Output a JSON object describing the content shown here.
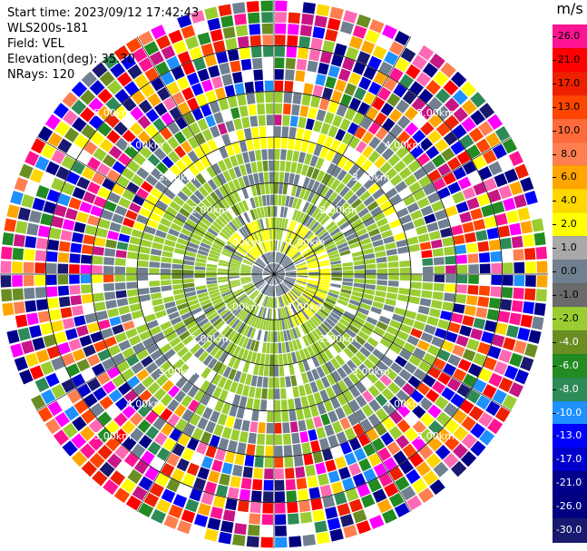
{
  "header": {
    "start_time": "Start time: 2023/09/12 17:42:43",
    "instrument": "WLS200s-181",
    "field": "Field: VEL",
    "elevation": "Elevation(deg): 35.30",
    "nrays": "NRays: 120"
  },
  "colorbar": {
    "unit": "m/s",
    "labels": [
      "26.0",
      "21.0",
      "17.0",
      "13.0",
      "10.0",
      "8.0",
      "6.0",
      "4.0",
      "2.0",
      "1.0",
      "0.0",
      "-1.0",
      "-2.0",
      "-4.0",
      "-6.0",
      "-8.0",
      "-10.0",
      "-13.0",
      "-17.0",
      "-21.0",
      "-26.0",
      "-30.0"
    ],
    "colors": [
      "#ff1493",
      "#ff0000",
      "#ee2000",
      "#ff4500",
      "#ff6a3a",
      "#ff7f50",
      "#ffa500",
      "#ffd700",
      "#ffff00",
      "#a9a9a9",
      "#708090",
      "#6b6b6b",
      "#9acd32",
      "#6b8e23",
      "#228b22",
      "#2e8b57",
      "#1e90ff",
      "#0000ff",
      "#0000cd",
      "#00008b",
      "#000080",
      "#191970"
    ]
  },
  "range_rings": {
    "labels": [
      "1.00km",
      "2.00km",
      "3.00km",
      "4.00km",
      "5.00km"
    ]
  },
  "plot": {
    "nrays": 120,
    "ngates": 24,
    "max_range_km": 6.0
  }
}
